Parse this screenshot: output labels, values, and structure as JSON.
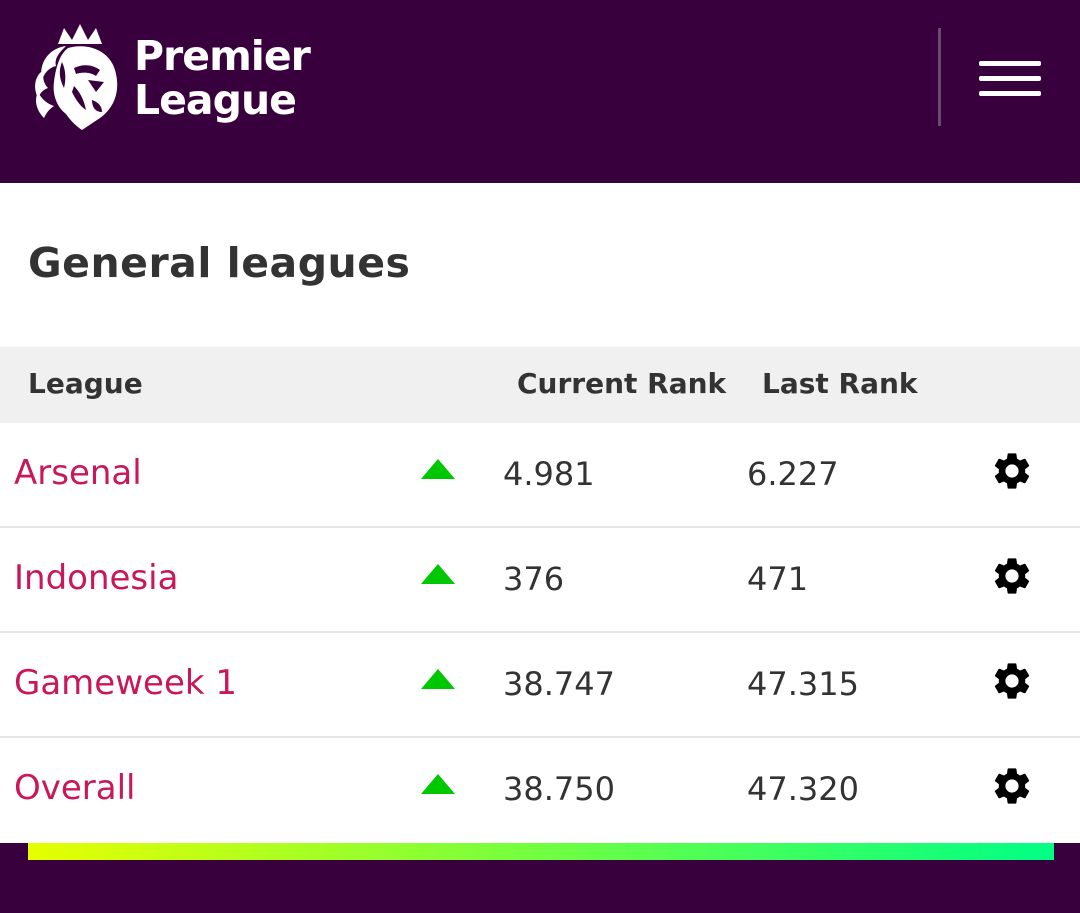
{
  "header": {
    "logo_line1": "Premier",
    "logo_line2": "League",
    "menu_icon": "hamburger-menu-icon"
  },
  "page": {
    "title": "General leagues"
  },
  "table": {
    "columns": {
      "league": "League",
      "current_rank": "Current Rank",
      "last_rank": "Last Rank"
    },
    "rows": [
      {
        "league": "Arsenal",
        "trend": "up",
        "current_rank": "4.981",
        "last_rank": "6.227"
      },
      {
        "league": "Indonesia",
        "trend": "up",
        "current_rank": "376",
        "last_rank": "471"
      },
      {
        "league": "Gameweek 1",
        "trend": "up",
        "current_rank": "38.747",
        "last_rank": "47.315"
      },
      {
        "league": "Overall",
        "trend": "up",
        "current_rank": "38.750",
        "last_rank": "47.320"
      }
    ]
  },
  "colors": {
    "brand_purple": "#38003c",
    "league_link": "#c8175a",
    "trend_up": "#00c800",
    "gradient_start": "#e6ff00",
    "gradient_end": "#00ff85"
  }
}
